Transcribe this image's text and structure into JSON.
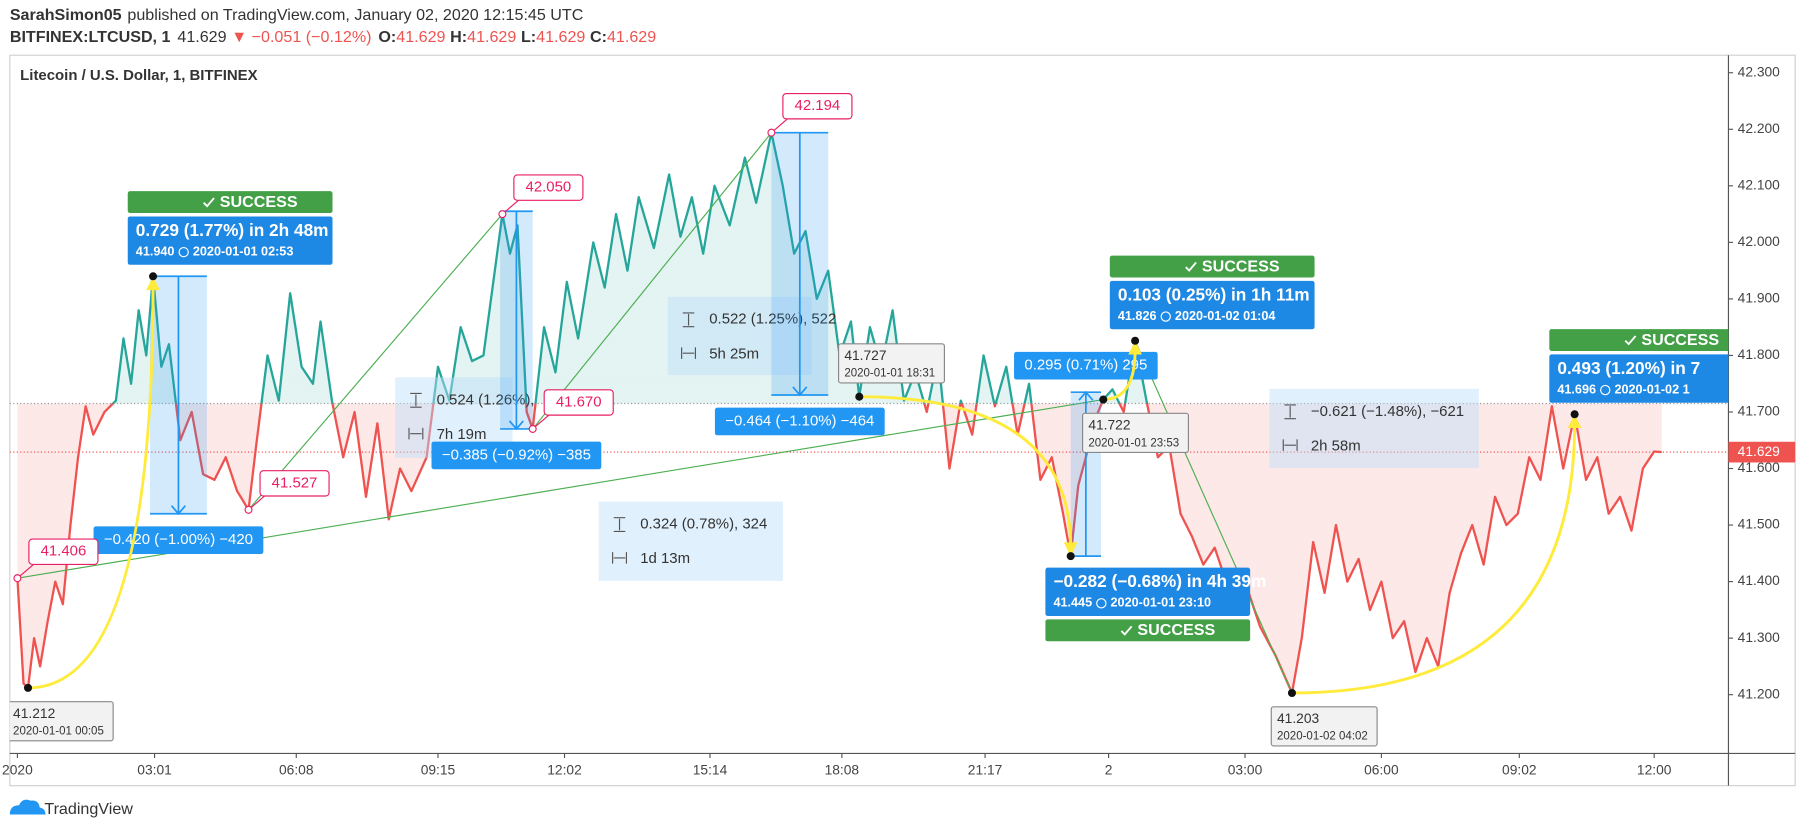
{
  "chart_data": {
    "type": "line",
    "header": {
      "user": "SarahSimon05",
      "published": "published on TradingView.com, January 02, 2020 12:15:45 UTC",
      "symbol": "BITFINEX:LTCUSD, 1",
      "last": 41.629,
      "change": "▼ −0.051 (−0.12%)",
      "ohlc": [
        {
          "label": "O:",
          "value": 41.629
        },
        {
          "label": "H:",
          "value": 41.629
        },
        {
          "label": "L:",
          "value": 41.629
        },
        {
          "label": "C:",
          "value": 41.629
        }
      ]
    },
    "title": "Litecoin / U.S. Dollar, 1, BITFINEX",
    "footer": "TradingView",
    "colors": {
      "above": "#26a69a",
      "below": "#ef5350"
    },
    "baseline": 41.715,
    "last_value": 41.629,
    "grid": false,
    "xlim": [
      -10,
      2258
    ],
    "ylim": [
      41.096,
      42.331
    ],
    "xticks": [
      {
        "value": 0,
        "label": "2020"
      },
      {
        "value": 181,
        "label": "03:01"
      },
      {
        "value": 368,
        "label": "06:08"
      },
      {
        "value": 555,
        "label": "09:15"
      },
      {
        "value": 722,
        "label": "12:02"
      },
      {
        "value": 914,
        "label": "15:14"
      },
      {
        "value": 1088,
        "label": "18:08"
      },
      {
        "value": 1277,
        "label": "21:17"
      },
      {
        "value": 1440,
        "label": "2"
      },
      {
        "value": 1620,
        "label": "03:00"
      },
      {
        "value": 1800,
        "label": "06:00"
      },
      {
        "value": 1982,
        "label": "09:02"
      },
      {
        "value": 2160,
        "label": "12:00"
      }
    ],
    "yticks": [
      {
        "value": 41.2,
        "label": "41.200"
      },
      {
        "value": 41.3,
        "label": "41.300"
      },
      {
        "value": 41.4,
        "label": "41.400"
      },
      {
        "value": 41.5,
        "label": "41.500"
      },
      {
        "value": 41.6,
        "label": "41.600"
      },
      {
        "value": 41.7,
        "label": "41.700"
      },
      {
        "value": 41.8,
        "label": "41.800"
      },
      {
        "value": 41.9,
        "label": "41.900"
      },
      {
        "value": 42.0,
        "label": "42.000"
      },
      {
        "value": 42.1,
        "label": "42.100"
      },
      {
        "value": 42.2,
        "label": "42.200"
      },
      {
        "value": 42.3,
        "label": "42.300"
      }
    ],
    "x": [
      0,
      8,
      14,
      22,
      30,
      40,
      50,
      60,
      70,
      80,
      90,
      100,
      115,
      130,
      140,
      150,
      160,
      170,
      179,
      190,
      200,
      215,
      230,
      245,
      260,
      275,
      290,
      305,
      315,
      330,
      345,
      360,
      375,
      390,
      400,
      415,
      430,
      445,
      460,
      475,
      490,
      505,
      520,
      540,
      555,
      570,
      585,
      600,
      615,
      630,
      640,
      650,
      660,
      672,
      680,
      695,
      710,
      725,
      740,
      760,
      775,
      790,
      805,
      820,
      840,
      860,
      875,
      890,
      905,
      920,
      940,
      960,
      975,
      995,
      1010,
      1025,
      1040,
      1055,
      1070,
      1085,
      1100,
      1111,
      1125,
      1140,
      1155,
      1170,
      1185,
      1200,
      1215,
      1230,
      1245,
      1260,
      1275,
      1290,
      1305,
      1320,
      1335,
      1350,
      1365,
      1380,
      1390,
      1400,
      1410,
      1420,
      1433,
      1445,
      1460,
      1475,
      1490,
      1505,
      1520,
      1535,
      1550,
      1565,
      1580,
      1600,
      1620,
      1640,
      1660,
      1682,
      1695,
      1710,
      1725,
      1740,
      1755,
      1770,
      1785,
      1800,
      1815,
      1830,
      1845,
      1860,
      1875,
      1890,
      1905,
      1920,
      1935,
      1950,
      1965,
      1980,
      1995,
      2010,
      2025,
      2040,
      2055,
      2070,
      2085,
      2100,
      2115,
      2130,
      2145,
      2160,
      2170
    ],
    "values": [
      41.406,
      41.22,
      41.212,
      41.3,
      41.25,
      41.33,
      41.4,
      41.36,
      41.5,
      41.62,
      41.71,
      41.66,
      41.7,
      41.72,
      41.83,
      41.75,
      41.88,
      41.8,
      41.94,
      41.78,
      41.82,
      41.65,
      41.7,
      41.59,
      41.58,
      41.62,
      41.56,
      41.527,
      41.64,
      41.8,
      41.72,
      41.91,
      41.78,
      41.75,
      41.86,
      41.72,
      41.62,
      41.7,
      41.55,
      41.68,
      41.51,
      41.6,
      41.56,
      41.62,
      41.78,
      41.72,
      41.85,
      41.79,
      41.8,
      41.95,
      42.05,
      41.98,
      42.03,
      41.7,
      41.67,
      41.85,
      41.77,
      41.93,
      41.83,
      42.0,
      41.92,
      42.05,
      41.95,
      42.08,
      41.99,
      42.12,
      42.01,
      42.08,
      41.98,
      42.1,
      42.03,
      42.15,
      42.07,
      42.194,
      42.1,
      41.98,
      42.02,
      41.9,
      41.95,
      41.8,
      41.86,
      41.727,
      41.85,
      41.78,
      41.88,
      41.72,
      41.77,
      41.7,
      41.8,
      41.6,
      41.72,
      41.66,
      41.8,
      41.71,
      41.78,
      41.66,
      41.75,
      41.58,
      41.62,
      41.52,
      41.445,
      41.57,
      41.62,
      41.68,
      41.722,
      41.74,
      41.7,
      41.826,
      41.72,
      41.62,
      41.64,
      41.52,
      41.48,
      41.43,
      41.46,
      41.38,
      41.4,
      41.32,
      41.27,
      41.203,
      41.3,
      41.47,
      41.38,
      41.5,
      41.4,
      41.44,
      41.35,
      41.4,
      41.3,
      41.33,
      41.24,
      41.3,
      41.25,
      41.38,
      41.45,
      41.5,
      41.43,
      41.55,
      41.5,
      41.52,
      41.62,
      41.58,
      41.71,
      41.6,
      41.696,
      41.58,
      41.62,
      41.52,
      41.55,
      41.49,
      41.6,
      41.63,
      41.629
    ],
    "price_labels": [
      {
        "x": 0,
        "value": 41.406
      },
      {
        "x": 305,
        "value": 41.527
      },
      {
        "x": 640,
        "value": {
          "value": 42.05,
          "label": "42.050"
        }
      },
      {
        "x": 680,
        "value": {
          "value": 41.67,
          "label": "41.670"
        }
      },
      {
        "x": 995,
        "value": 42.194
      }
    ],
    "point_labels": [
      {
        "x": 14,
        "value": 41.212,
        "time": "2020-01-01 00:05"
      },
      {
        "x": 1111,
        "value": 41.727,
        "time": "2020-01-01 18:31"
      },
      {
        "x": 1433,
        "value": 41.722,
        "time": "2020-01-01 23:53"
      },
      {
        "x": 1682,
        "value": 41.203,
        "time": "2020-01-02 04:02"
      }
    ],
    "forecasts": [
      {
        "x": 179,
        "price": {
          "value": 41.94,
          "label": "41.940"
        },
        "text": "0.729 (1.77%) in 2h 48m",
        "time": "2020-01-01  02:53",
        "status": "SUCCESS"
      },
      {
        "x": 1390,
        "price": 41.445,
        "text": "−0.282 (−0.68%) in 4h 39m",
        "time": "2020-01-01  23:10",
        "status": "SUCCESS"
      },
      {
        "x": 1475,
        "price": 41.826,
        "text": "0.103 (0.25%) in 1h 11m",
        "time": "2020-01-02  01:04",
        "status": "SUCCESS"
      },
      {
        "x": 2055,
        "price": 41.696,
        "text": "0.493 (1.20%) in 7",
        "time": "2020-01-02  1",
        "status": "SUCCESS"
      }
    ],
    "ranges": [
      {
        "x": [
          175,
          250
        ],
        "y": [
          41.94,
          41.52
        ],
        "label": "−0.420 (−1.00%) −420"
      },
      {
        "x": [
          637,
          680
        ],
        "y": [
          42.055,
          41.67
        ],
        "label": "−0.385 (−0.92%) −385"
      },
      {
        "x": [
          995,
          1070
        ],
        "y": [
          42.194,
          41.73
        ],
        "label": "−0.464 (−1.10%) −464"
      },
      {
        "x": [
          1390,
          1430
        ],
        "y": [
          41.445,
          41.735
        ],
        "label": "0.295 (0.71%) 295"
      }
    ],
    "measures": [
      {
        "price": "0.524 (1.26%),",
        "time": "7h 19m"
      },
      {
        "price": "0.324 (0.78%), 324",
        "time": "1d 13m"
      },
      {
        "price": "0.522 (1.25%), 522",
        "time": "5h 25m"
      },
      {
        "price": "−0.621 (−1.48%), −621",
        "time": "2h 58m"
      }
    ]
  }
}
